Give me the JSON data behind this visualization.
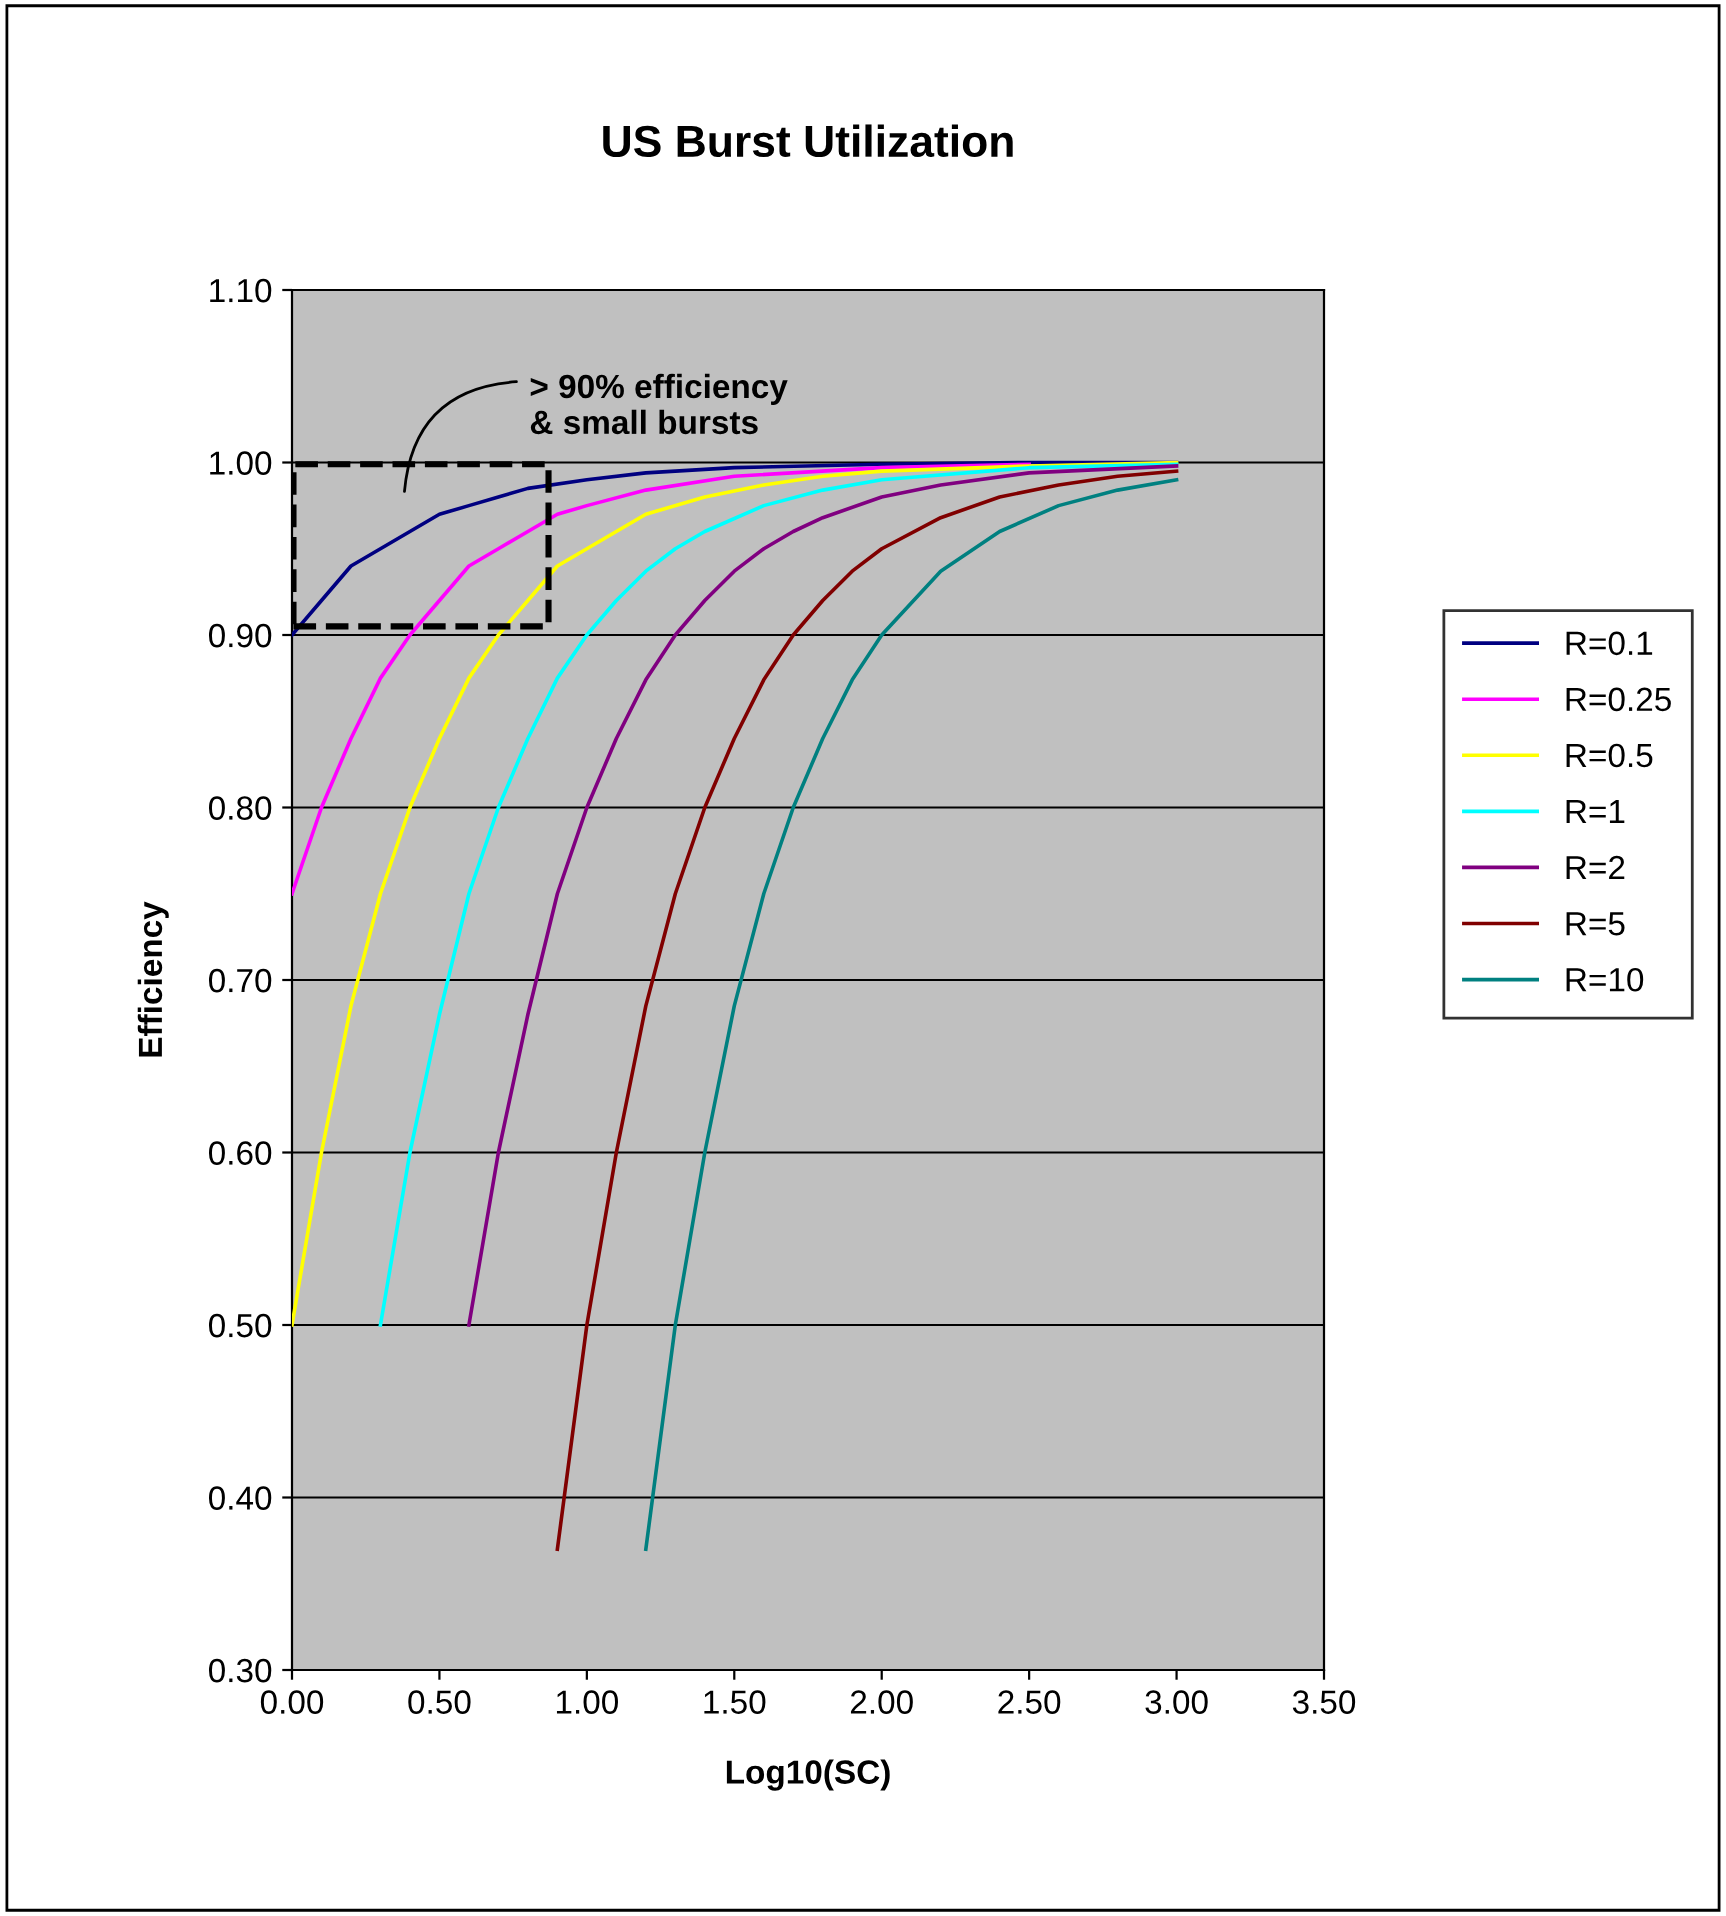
{
  "chart_data": {
    "type": "line",
    "title": "US Burst Utilization",
    "xlabel": "Log10(SC)",
    "ylabel": "Efficiency",
    "annotations": [
      "> 90% efficiency\n& small bursts"
    ],
    "xlim": [
      0,
      3.5
    ],
    "ylim": [
      0.3,
      1.1
    ],
    "xticks": [
      {
        "value": 0,
        "label": "0.00"
      },
      {
        "value": 0.5,
        "label": "0.50"
      },
      {
        "value": 1,
        "label": "1.00"
      },
      {
        "value": 1.5,
        "label": "1.50"
      },
      {
        "value": 2,
        "label": "2.00"
      },
      {
        "value": 2.5,
        "label": "2.50"
      },
      {
        "value": 3,
        "label": "3.00"
      },
      {
        "value": 3.5,
        "label": "3.50"
      }
    ],
    "yticks": [
      {
        "value": 0.3,
        "label": "0.30"
      },
      {
        "value": 0.4,
        "label": "0.40"
      },
      {
        "value": 0.5,
        "label": "0.50"
      },
      {
        "value": 0.6,
        "label": "0.60"
      },
      {
        "value": 0.7,
        "label": "0.70"
      },
      {
        "value": 0.8,
        "label": "0.80"
      },
      {
        "value": 0.9,
        "label": "0.90"
      },
      {
        "value": 1.0,
        "label": "1.00"
      },
      {
        "value": 1.1,
        "label": "1.10"
      }
    ],
    "grid": "y",
    "legend": "right",
    "marker": "none",
    "line_style": "solid",
    "series": [
      {
        "name": "R=0.1",
        "color": "#000080",
        "x": [
          0,
          0.1,
          0.2,
          0.3,
          0.4,
          0.5,
          0.6,
          0.7,
          0.8,
          1.0,
          1.2,
          1.5,
          2.0,
          2.5,
          3.0
        ],
        "values": [
          0.9,
          0.92,
          0.94,
          0.95,
          0.96,
          0.97,
          0.975,
          0.98,
          0.985,
          0.99,
          0.994,
          0.997,
          0.999,
          1.0,
          1.0
        ]
      },
      {
        "name": "R=0.25",
        "color": "#ff00ff",
        "x": [
          0,
          0.1,
          0.2,
          0.3,
          0.4,
          0.5,
          0.6,
          0.7,
          0.8,
          0.9,
          1.0,
          1.2,
          1.5,
          2.0,
          2.5
        ],
        "values": [
          0.75,
          0.8,
          0.84,
          0.875,
          0.9,
          0.92,
          0.94,
          0.95,
          0.96,
          0.97,
          0.975,
          0.984,
          0.992,
          0.997,
          0.999
        ]
      },
      {
        "name": "R=0.5",
        "color": "#ffff00",
        "x": [
          0,
          0.1,
          0.2,
          0.3,
          0.4,
          0.5,
          0.6,
          0.7,
          0.8,
          0.9,
          1.0,
          1.2,
          1.4,
          1.6,
          1.8,
          2.0,
          2.5,
          3.0
        ],
        "values": [
          0.5,
          0.6,
          0.685,
          0.75,
          0.8,
          0.84,
          0.875,
          0.9,
          0.92,
          0.94,
          0.95,
          0.97,
          0.98,
          0.987,
          0.992,
          0.995,
          0.998,
          1.0
        ]
      },
      {
        "name": "R=1",
        "color": "#00ffff",
        "x": [
          0.3,
          0.4,
          0.5,
          0.6,
          0.7,
          0.8,
          0.9,
          1.0,
          1.1,
          1.2,
          1.3,
          1.4,
          1.6,
          1.8,
          2.0,
          2.5,
          3.0
        ],
        "values": [
          0.5,
          0.6,
          0.68,
          0.75,
          0.8,
          0.84,
          0.875,
          0.9,
          0.92,
          0.937,
          0.95,
          0.96,
          0.975,
          0.984,
          0.99,
          0.997,
          0.999
        ]
      },
      {
        "name": "R=2",
        "color": "#800080",
        "x": [
          0.6,
          0.7,
          0.8,
          0.9,
          1.0,
          1.1,
          1.2,
          1.3,
          1.4,
          1.5,
          1.6,
          1.7,
          1.8,
          2.0,
          2.2,
          2.5,
          3.0
        ],
        "values": [
          0.5,
          0.6,
          0.68,
          0.75,
          0.8,
          0.84,
          0.874,
          0.9,
          0.92,
          0.937,
          0.95,
          0.96,
          0.968,
          0.98,
          0.987,
          0.994,
          0.998
        ]
      },
      {
        "name": "R=5",
        "color": "#800000",
        "x": [
          0.9,
          1.0,
          1.1,
          1.2,
          1.3,
          1.4,
          1.5,
          1.6,
          1.7,
          1.8,
          1.9,
          2.0,
          2.2,
          2.4,
          2.6,
          2.8,
          3.0
        ],
        "values": [
          0.37,
          0.5,
          0.6,
          0.685,
          0.75,
          0.8,
          0.84,
          0.874,
          0.9,
          0.92,
          0.937,
          0.95,
          0.968,
          0.98,
          0.987,
          0.992,
          0.995
        ]
      },
      {
        "name": "R=10",
        "color": "#008080",
        "x": [
          1.2,
          1.3,
          1.4,
          1.5,
          1.6,
          1.7,
          1.8,
          1.9,
          2.0,
          2.2,
          2.4,
          2.6,
          2.8,
          3.0
        ],
        "values": [
          0.37,
          0.5,
          0.6,
          0.685,
          0.75,
          0.8,
          0.84,
          0.874,
          0.9,
          0.937,
          0.96,
          0.975,
          0.984,
          0.99
        ]
      }
    ]
  }
}
